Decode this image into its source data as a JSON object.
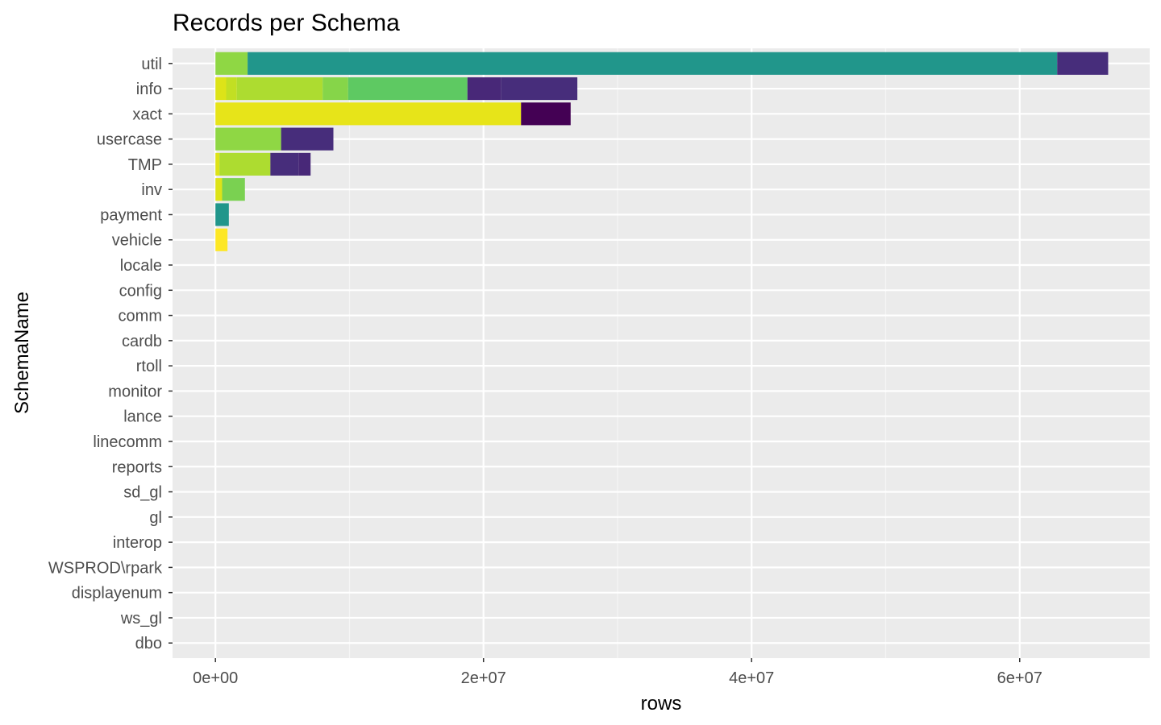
{
  "chart_data": {
    "type": "bar",
    "orientation": "horizontal",
    "stacked": true,
    "title": "Records per Schema",
    "xlabel": "rows",
    "ylabel": "SchemaName",
    "xlim": [
      -3200000,
      69700000
    ],
    "x_ticks": [
      {
        "value": 0,
        "label": "0e+00"
      },
      {
        "value": 20000000,
        "label": "2e+07"
      },
      {
        "value": 40000000,
        "label": "4e+07"
      },
      {
        "value": 60000000,
        "label": "6e+07"
      }
    ],
    "x_minor_ticks": [
      10000000,
      30000000,
      50000000
    ],
    "grid": true,
    "legend": "none",
    "categories": [
      "util",
      "info",
      "xact",
      "usercase",
      "TMP",
      "inv",
      "payment",
      "vehicle",
      "locale",
      "config",
      "comm",
      "cardb",
      "rtoll",
      "monitor",
      "lance",
      "linecomm",
      "reports",
      "sd_gl",
      "gl",
      "interop",
      "WSPROD\\rpark",
      "displayenum",
      "ws_gl",
      "dbo"
    ],
    "segments": [
      {
        "category": "util",
        "value": 2400000,
        "color": "#8fd744"
      },
      {
        "category": "util",
        "value": 60400000,
        "color": "#21968b"
      },
      {
        "category": "util",
        "value": 3800000,
        "color": "#472d7b"
      },
      {
        "category": "info",
        "value": 800000,
        "color": "#dde318"
      },
      {
        "category": "info",
        "value": 800000,
        "color": "#c2df23"
      },
      {
        "category": "info",
        "value": 6400000,
        "color": "#addc30"
      },
      {
        "category": "info",
        "value": 1900000,
        "color": "#86d549"
      },
      {
        "category": "info",
        "value": 8900000,
        "color": "#5ec962"
      },
      {
        "category": "info",
        "value": 2500000,
        "color": "#482878"
      },
      {
        "category": "info",
        "value": 5700000,
        "color": "#472d7b"
      },
      {
        "category": "xact",
        "value": 22800000,
        "color": "#e7e419"
      },
      {
        "category": "xact",
        "value": 3700000,
        "color": "#440154"
      },
      {
        "category": "usercase",
        "value": 4900000,
        "color": "#8fd744"
      },
      {
        "category": "usercase",
        "value": 3900000,
        "color": "#472d7b"
      },
      {
        "category": "TMP",
        "value": 300000,
        "color": "#dde318"
      },
      {
        "category": "TMP",
        "value": 3800000,
        "color": "#addc30"
      },
      {
        "category": "TMP",
        "value": 2100000,
        "color": "#472d7b"
      },
      {
        "category": "TMP",
        "value": 900000,
        "color": "#482878"
      },
      {
        "category": "inv",
        "value": 500000,
        "color": "#dde318"
      },
      {
        "category": "inv",
        "value": 1700000,
        "color": "#7ad151"
      },
      {
        "category": "payment",
        "value": 1000000,
        "color": "#21968b"
      },
      {
        "category": "vehicle",
        "value": 900000,
        "color": "#fde725"
      }
    ]
  }
}
